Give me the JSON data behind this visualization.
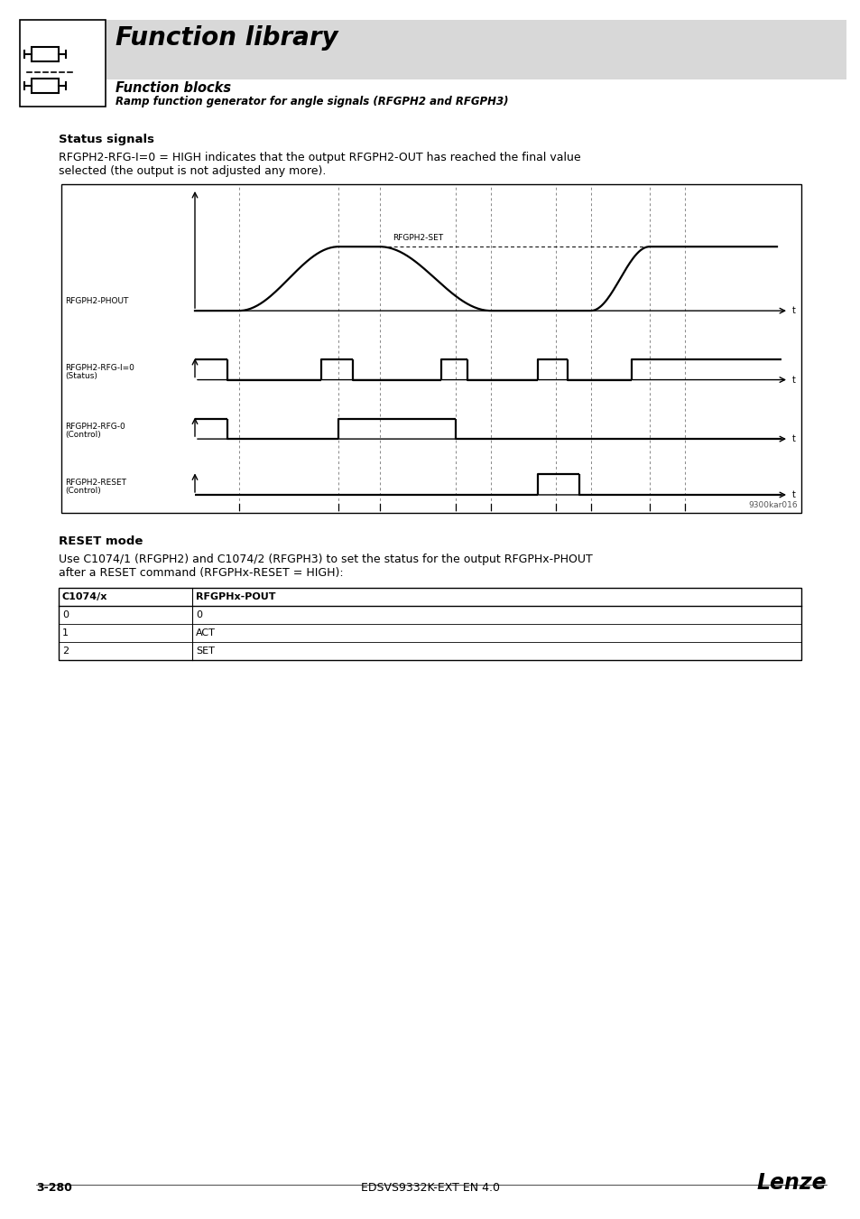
{
  "page_bg": "#ffffff",
  "header_bg": "#d8d8d8",
  "header_title": "Function library",
  "header_sub1": "Function blocks",
  "header_sub2": "Ramp function generator for angle signals (RFGPH2 and RFGPH3)",
  "section1_title": "Status signals",
  "section1_text1": "RFGPH2-RFG-I=0 = HIGH indicates that the output RFGPH2-OUT has reached the final value",
  "section1_text2": "selected (the output is not adjusted any more).",
  "diagram_label_set": "RFGPH2-SET",
  "diagram_label_phout": "RFGPH2-PHOUT",
  "diagram_label_status": "RFGPH2-RFG-I=0",
  "diagram_label_status2": "(Status)",
  "diagram_label_control": "RFGPH2-RFG-0",
  "diagram_label_control2": "(Control)",
  "diagram_label_reset": "RFGPH2-RESET",
  "diagram_label_reset2": "(Control)",
  "diagram_code": "9300kar016",
  "section2_title": "RESET mode",
  "section2_text1": "Use C1074/1 (RFGPH2) and C1074/2 (RFGPH3) to set the status for the output RFGPHx-PHOUT",
  "section2_text2": "after a RESET command (RFGPHx-RESET = HIGH):",
  "table_headers": [
    "C1074/x",
    "RFGPHx-POUT"
  ],
  "table_rows": [
    [
      "0",
      "0"
    ],
    [
      "1",
      "ACT"
    ],
    [
      "2",
      "SET"
    ]
  ],
  "footer_left": "3-280",
  "footer_center": "EDSVS9332K-EXT EN 4.0",
  "footer_right": "Lenze"
}
